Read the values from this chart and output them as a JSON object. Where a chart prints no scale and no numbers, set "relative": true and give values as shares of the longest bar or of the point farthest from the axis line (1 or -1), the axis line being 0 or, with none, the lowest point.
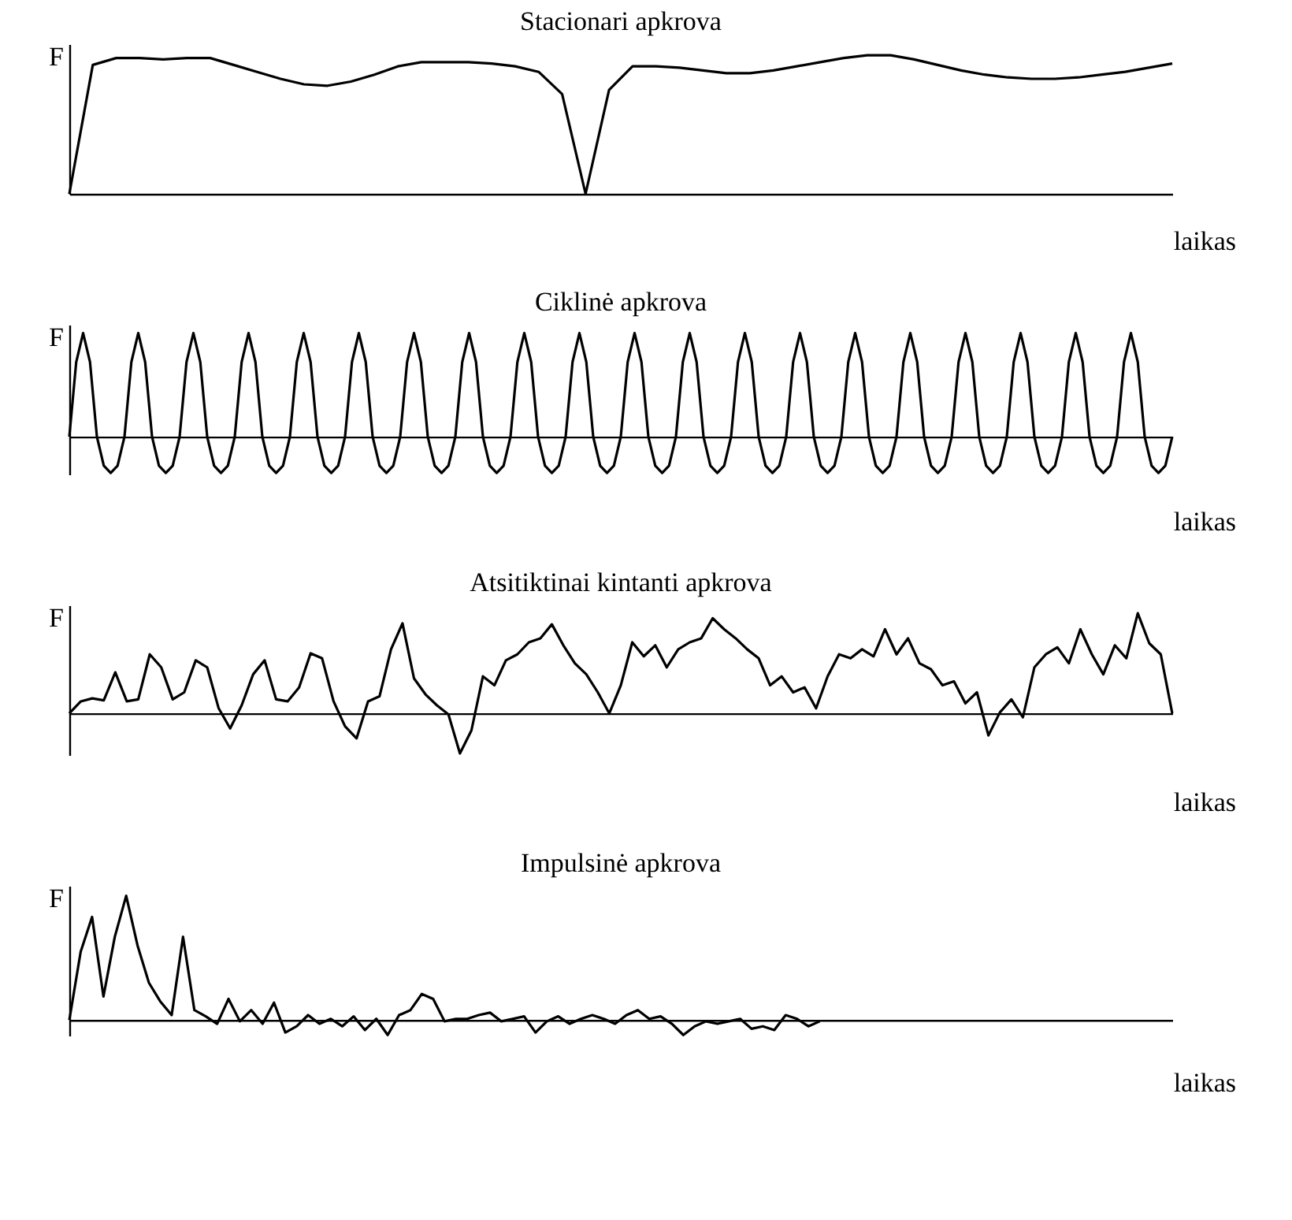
{
  "chart_data": [
    {
      "type": "line",
      "title": "Stacionari apkrova",
      "xlabel": "laikas",
      "ylabel": "F",
      "relative": true,
      "color": "#000000",
      "categories": [
        null,
        null,
        null,
        null,
        null,
        null,
        null,
        null,
        null,
        null,
        null,
        null,
        null,
        null,
        null,
        null,
        null,
        null,
        null,
        null,
        null,
        null,
        null,
        null,
        null,
        null,
        null,
        null,
        null,
        null,
        null,
        null,
        null,
        null,
        null,
        null,
        null,
        null,
        null,
        null,
        null,
        null,
        null,
        null,
        null,
        null,
        null,
        null
      ],
      "values": [
        0,
        0.93,
        0.98,
        0.98,
        0.97,
        0.98,
        0.98,
        0.93,
        0.88,
        0.83,
        0.79,
        0.78,
        0.81,
        0.86,
        0.92,
        0.95,
        0.95,
        0.95,
        0.94,
        0.92,
        0.88,
        0.72,
        0,
        0.75,
        0.92,
        0.92,
        0.91,
        0.89,
        0.87,
        0.87,
        0.89,
        0.92,
        0.95,
        0.98,
        1,
        1,
        0.97,
        0.93,
        0.89,
        0.86,
        0.84,
        0.83,
        0.83,
        0.84,
        0.86,
        0.88,
        0.91,
        0.94
      ]
    },
    {
      "type": "line",
      "title": "Ciklinė apkrova",
      "xlabel": "laikas",
      "ylabel": "F",
      "relative": true,
      "color": "#000000",
      "categories": [
        null,
        null,
        null,
        null,
        null,
        null,
        null,
        null,
        null,
        null,
        null,
        null,
        null,
        null,
        null,
        null,
        null,
        null,
        null,
        null,
        null,
        null,
        null,
        null,
        null,
        null,
        null,
        null,
        null,
        null,
        null,
        null,
        null,
        null,
        null,
        null,
        null,
        null,
        null,
        null,
        null,
        null,
        null,
        null,
        null,
        null,
        null,
        null,
        null,
        null,
        null,
        null,
        null,
        null,
        null,
        null,
        null,
        null,
        null,
        null,
        null,
        null,
        null,
        null,
        null,
        null,
        null,
        null,
        null,
        null,
        null,
        null,
        null,
        null,
        null,
        null,
        null,
        null,
        null,
        null,
        null,
        null,
        null,
        null,
        null,
        null,
        null,
        null,
        null,
        null,
        null,
        null,
        null,
        null,
        null,
        null,
        null,
        null,
        null,
        null,
        null,
        null,
        null,
        null,
        null,
        null,
        null,
        null,
        null,
        null,
        null,
        null,
        null,
        null,
        null,
        null,
        null,
        null,
        null,
        null,
        null,
        null,
        null,
        null,
        null,
        null,
        null,
        null,
        null,
        null,
        null,
        null,
        null,
        null,
        null,
        null,
        null,
        null,
        null,
        null,
        null,
        null,
        null,
        null,
        null,
        null,
        null,
        null,
        null,
        null,
        null,
        null,
        null,
        null,
        null,
        null,
        null,
        null,
        null,
        null,
        null
      ],
      "values": [
        0,
        0.72,
        1,
        0.72,
        0,
        -0.28,
        -0.35,
        -0.28,
        0,
        0.72,
        1,
        0.72,
        0,
        -0.28,
        -0.35,
        -0.28,
        0,
        0.72,
        1,
        0.72,
        0,
        -0.28,
        -0.35,
        -0.28,
        0,
        0.72,
        1,
        0.72,
        0,
        -0.28,
        -0.35,
        -0.28,
        0,
        0.72,
        1,
        0.72,
        0,
        -0.28,
        -0.35,
        -0.28,
        0,
        0.72,
        1,
        0.72,
        0,
        -0.28,
        -0.35,
        -0.28,
        0,
        0.72,
        1,
        0.72,
        0,
        -0.28,
        -0.35,
        -0.28,
        0,
        0.72,
        1,
        0.72,
        0,
        -0.28,
        -0.35,
        -0.28,
        0,
        0.72,
        1,
        0.72,
        0,
        -0.28,
        -0.35,
        -0.28,
        0,
        0.72,
        1,
        0.72,
        0,
        -0.28,
        -0.35,
        -0.28,
        0,
        0.72,
        1,
        0.72,
        0,
        -0.28,
        -0.35,
        -0.28,
        0,
        0.72,
        1,
        0.72,
        0,
        -0.28,
        -0.35,
        -0.28,
        0,
        0.72,
        1,
        0.72,
        0,
        -0.28,
        -0.35,
        -0.28,
        0,
        0.72,
        1,
        0.72,
        0,
        -0.28,
        -0.35,
        -0.28,
        0,
        0.72,
        1,
        0.72,
        0,
        -0.28,
        -0.35,
        -0.28,
        0,
        0.72,
        1,
        0.72,
        0,
        -0.28,
        -0.35,
        -0.28,
        0,
        0.72,
        1,
        0.72,
        0,
        -0.28,
        -0.35,
        -0.28,
        0,
        0.72,
        1,
        0.72,
        0,
        -0.28,
        -0.35,
        -0.28,
        0,
        0.72,
        1,
        0.72,
        0,
        -0.28,
        -0.35,
        -0.28,
        0,
        0.72,
        1,
        0.72,
        0,
        -0.28,
        -0.35,
        -0.28,
        0
      ]
    },
    {
      "type": "line",
      "title": "Atsitiktinai kintanti apkrova",
      "xlabel": "laikas",
      "ylabel": "F",
      "relative": true,
      "color": "#000000",
      "categories": [
        null,
        null,
        null,
        null,
        null,
        null,
        null,
        null,
        null,
        null,
        null,
        null,
        null,
        null,
        null,
        null,
        null,
        null,
        null,
        null,
        null,
        null,
        null,
        null,
        null,
        null,
        null,
        null,
        null,
        null,
        null,
        null,
        null,
        null,
        null,
        null,
        null,
        null,
        null,
        null,
        null,
        null,
        null,
        null,
        null,
        null,
        null,
        null,
        null,
        null,
        null,
        null,
        null,
        null,
        null,
        null,
        null,
        null,
        null,
        null,
        null,
        null,
        null,
        null,
        null,
        null,
        null,
        null,
        null,
        null,
        null,
        null,
        null,
        null,
        null,
        null,
        null,
        null,
        null,
        null,
        null,
        null,
        null,
        null,
        null,
        null,
        null,
        null,
        null,
        null,
        null,
        null,
        null,
        null,
        null,
        null,
        null
      ],
      "values": [
        0,
        0.12,
        0.15,
        0.13,
        0.41,
        0.12,
        0.14,
        0.59,
        0.46,
        0.14,
        0.21,
        0.53,
        0.46,
        0.05,
        -0.15,
        0.08,
        0.39,
        0.53,
        0.14,
        0.12,
        0.26,
        0.6,
        0.55,
        0.12,
        -0.13,
        -0.25,
        0.12,
        0.17,
        0.64,
        0.9,
        0.35,
        0.19,
        0.08,
        -0.01,
        -0.4,
        -0.17,
        0.37,
        0.28,
        0.53,
        0.59,
        0.71,
        0.75,
        0.89,
        0.68,
        0.5,
        0.39,
        0.21,
        0,
        0.28,
        0.71,
        0.57,
        0.68,
        0.46,
        0.64,
        0.71,
        0.75,
        0.95,
        0.84,
        0.75,
        0.64,
        0.55,
        0.28,
        0.37,
        0.21,
        0.26,
        0.05,
        0.37,
        0.59,
        0.55,
        0.64,
        0.57,
        0.84,
        0.59,
        0.75,
        0.5,
        0.44,
        0.28,
        0.32,
        0.1,
        0.21,
        -0.22,
        0.01,
        0.14,
        -0.04,
        0.46,
        0.59,
        0.66,
        0.5,
        0.84,
        0.59,
        0.39,
        0.68,
        0.55,
        1,
        0.7,
        0.59,
        0
      ]
    },
    {
      "type": "line",
      "title": "Impulsinė apkrova",
      "xlabel": "laikas",
      "ylabel": "F",
      "relative": true,
      "color": "#000000",
      "categories": [
        null,
        null,
        null,
        null,
        null,
        null,
        null,
        null,
        null,
        null,
        null,
        null,
        null,
        null,
        null,
        null,
        null,
        null,
        null,
        null,
        null,
        null,
        null,
        null,
        null,
        null,
        null,
        null,
        null,
        null,
        null,
        null,
        null,
        null,
        null,
        null,
        null,
        null,
        null,
        null,
        null,
        null,
        null,
        null,
        null,
        null,
        null,
        null,
        null,
        null,
        null,
        null,
        null,
        null,
        null,
        null,
        null,
        null,
        null,
        null,
        null,
        null,
        null,
        null,
        null,
        null,
        null,
        null,
        null,
        null,
        null,
        null,
        null,
        null,
        null,
        null,
        null,
        null,
        null,
        null,
        null,
        null,
        null,
        null,
        null,
        null,
        null,
        null,
        null,
        null,
        null,
        null,
        null,
        null,
        null,
        null,
        null,
        null
      ],
      "values": [
        0,
        0.55,
        0.83,
        0.19,
        0.67,
        1,
        0.6,
        0.3,
        0.15,
        0.04,
        0.67,
        0.08,
        0.03,
        -0.03,
        0.17,
        -0.01,
        0.08,
        -0.03,
        0.14,
        -0.1,
        -0.05,
        0.04,
        -0.03,
        0.01,
        -0.05,
        0.03,
        -0.08,
        0.01,
        -0.12,
        0.04,
        0.08,
        0.21,
        0.17,
        -0.01,
        0.01,
        0.01,
        0.04,
        0.06,
        -0.01,
        0.01,
        0.03,
        -0.1,
        -0.01,
        0.03,
        -0.03,
        0.01,
        0.04,
        0.01,
        -0.03,
        0.04,
        0.08,
        0.01,
        0.03,
        -0.03,
        -0.12,
        -0.05,
        -0.01,
        -0.03,
        -0.01,
        0.01,
        -0.07,
        -0.05,
        -0.08,
        0.04,
        0.01,
        -0.05,
        -0.01,
        null,
        null,
        null,
        null,
        null,
        null,
        null,
        null,
        null,
        null,
        null,
        null,
        null,
        null,
        null,
        null,
        null,
        null,
        null,
        null,
        null,
        null,
        null,
        null,
        null,
        null,
        null,
        null,
        null,
        null,
        null
      ]
    }
  ]
}
